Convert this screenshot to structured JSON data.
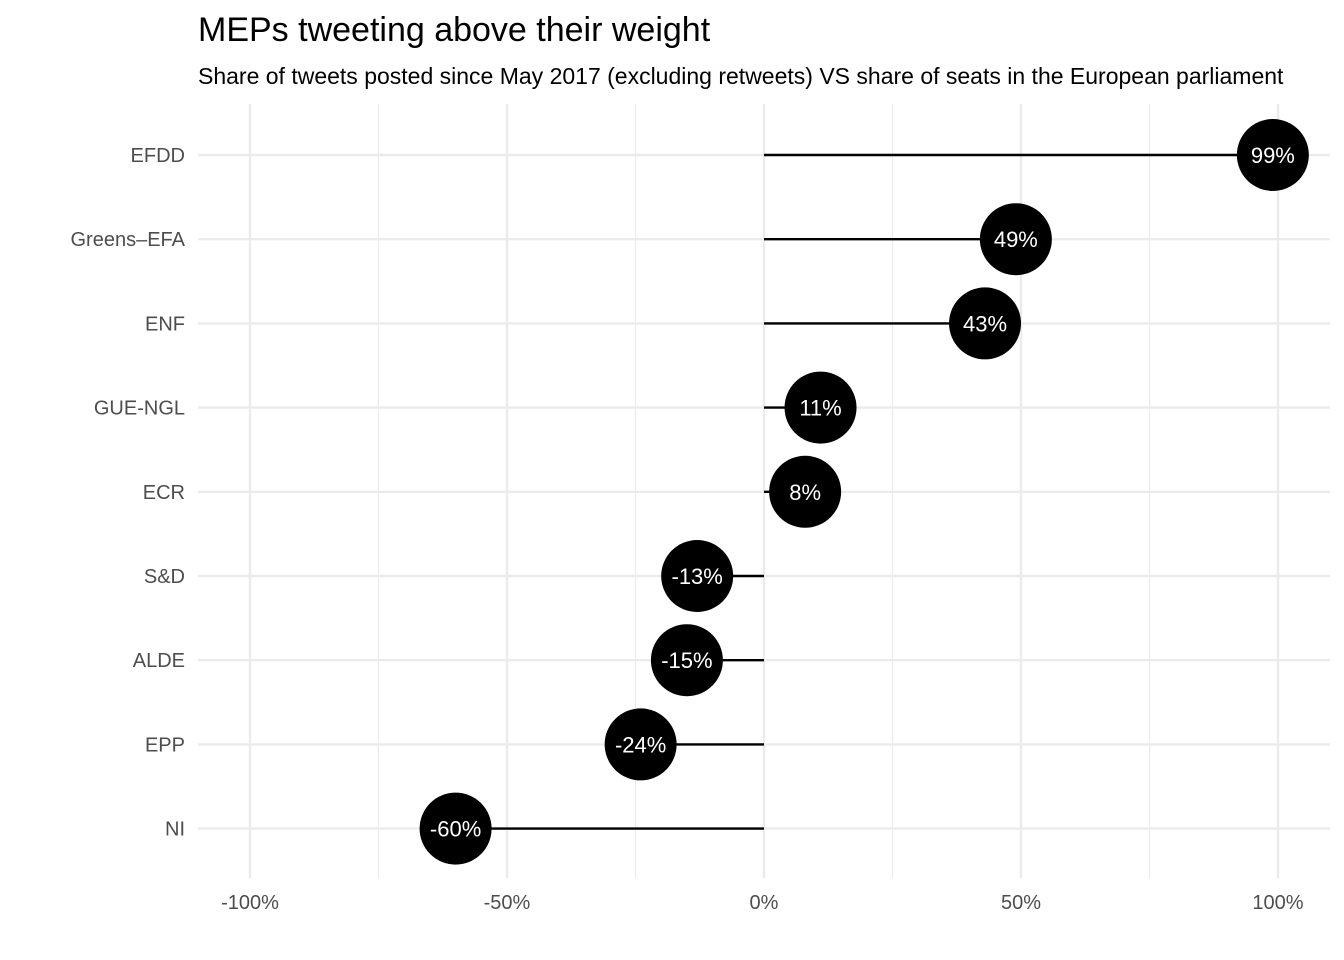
{
  "chart_data": {
    "type": "lollipop",
    "title": "MEPs tweeting above their weight",
    "subtitle": "Share of tweets posted since May 2017 (excluding retweets) VS share of seats in the European parliament",
    "xlabel": "",
    "ylabel": "",
    "xlim": [
      -1.1,
      1.1
    ],
    "x_ticks": [
      -1.0,
      -0.5,
      0,
      0.5,
      1.0
    ],
    "x_tick_labels": [
      "-100%",
      "-50%",
      "0%",
      "50%",
      "100%"
    ],
    "grid": true,
    "categories": [
      "EFDD",
      "Greens–EFA",
      "ENF",
      "GUE-NGL",
      "ECR",
      "S&D",
      "ALDE",
      "EPP",
      "NI"
    ],
    "values": [
      0.99,
      0.49,
      0.43,
      0.11,
      0.08,
      -0.13,
      -0.15,
      -0.24,
      -0.6
    ],
    "labels": [
      "99%",
      "49%",
      "43%",
      "11%",
      "8%",
      "-13%",
      "-15%",
      "-24%",
      "-60%"
    ],
    "colors": {
      "point": "#000000",
      "segment": "#000000",
      "grid": "#ebebeb",
      "label": "#ffffff",
      "axis_text": "#4d4d4d"
    }
  }
}
